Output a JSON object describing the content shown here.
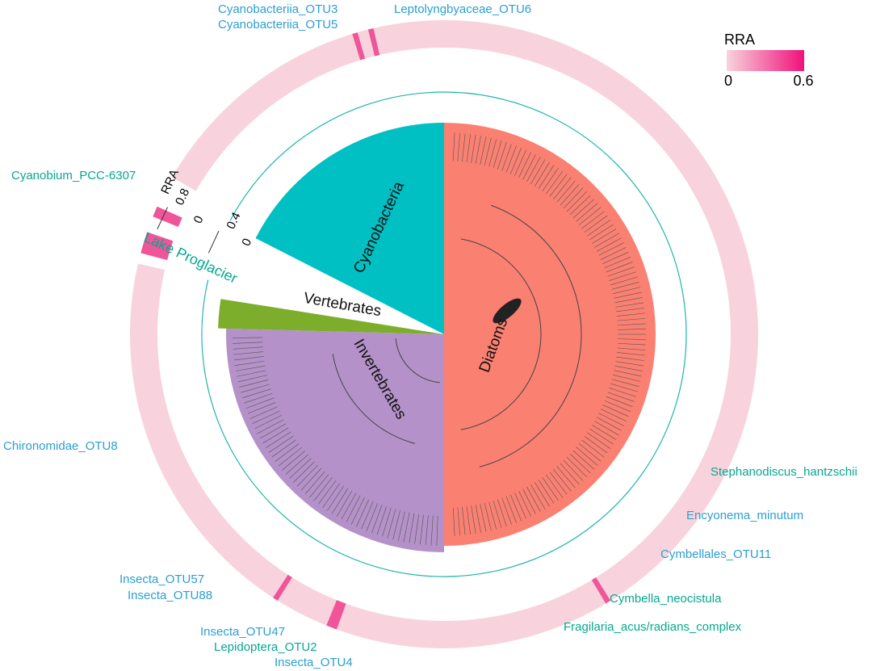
{
  "groups": {
    "cyanobacteria": "Cyanobacteria",
    "diatoms": "Diatoms",
    "vertebrates": "Vertebrates",
    "invertebrates": "Invertebrates"
  },
  "legend": {
    "title": "RRA",
    "min": "0",
    "max": "0.6"
  },
  "axis": {
    "title": "RRA",
    "t1": "0.8",
    "t2": "0",
    "t3": "0.4",
    "t4": "0",
    "site": "Lake Proglacier"
  },
  "labels": [
    "Cyanobacteriia_OTU3",
    "Cyanobacteriia_OTU5",
    "Leptolyngbyaceae_OTU6",
    "Cyanobium_PCC-6307",
    "Chironomidae_OTU8",
    "Stephanodiscus_hantzschii",
    "Encyonema_minutum",
    "Cymbellales_OTU11",
    "Cymbella_neocistula",
    "Fragilaria_acus/radians_complex",
    "Insecta_OTU57",
    "Insecta_OTU88",
    "Insecta_OTU47",
    "Lepidoptera_OTU2",
    "Insecta_OTU4"
  ]
}
